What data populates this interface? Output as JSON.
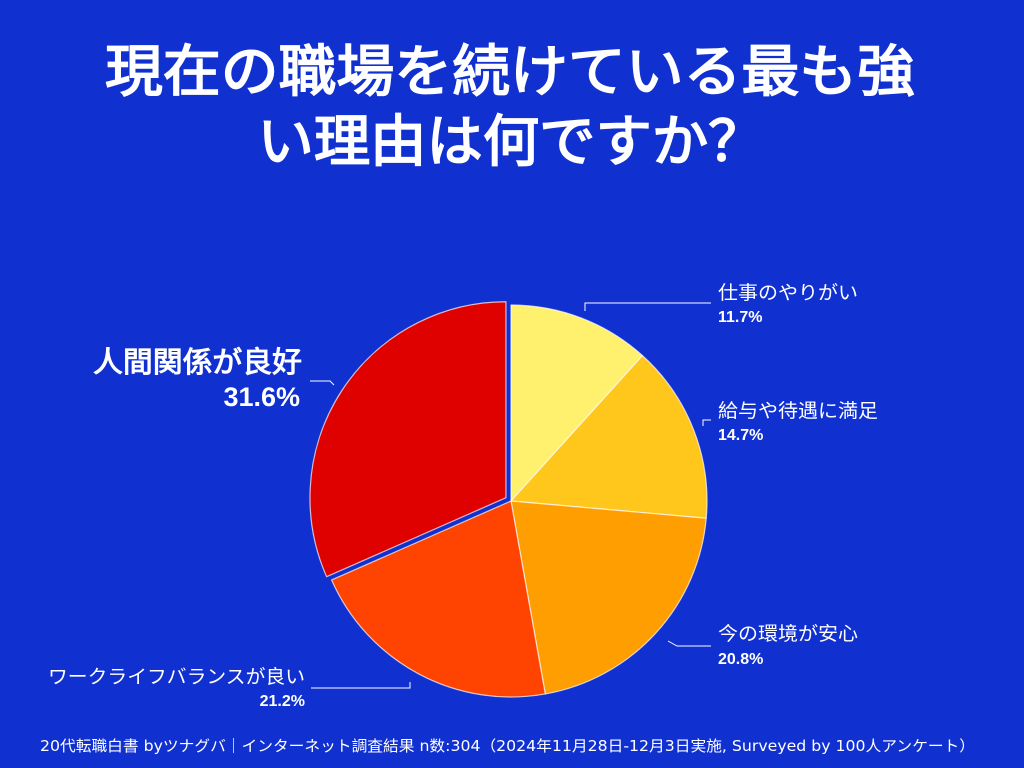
{
  "colors": {
    "background": "#1030D0",
    "text": "#FFFFFF"
  },
  "chart_data": {
    "type": "pie",
    "title": [
      "現在の職場を続けている最も強",
      "い理由は何ですか？"
    ],
    "start": "top",
    "direction": "clockwise",
    "slices": [
      {
        "label": "仕事のやりがい",
        "value": 11.7,
        "value_label": "11.7%",
        "color": "#FFF06E"
      },
      {
        "label": "給与や待遇に満足",
        "value": 14.7,
        "value_label": "14.7%",
        "color": "#FFC61C"
      },
      {
        "label": "今の環境が安心",
        "value": 20.8,
        "value_label": "20.8%",
        "color": "#FF9E00"
      },
      {
        "label": "ワークライフバランスが良い",
        "value": 21.2,
        "value_label": "21.2%",
        "color": "#FF4300"
      },
      {
        "label": "人間関係が良好",
        "value": 31.6,
        "value_label": "31.6%",
        "color": "#DF0000",
        "exploded": true
      }
    ]
  },
  "source_note": "20代転職白書 byツナグバ｜インターネット調査結果 n数:304（2024年11月28日-12月3日実施, Surveyed by 100人アンケート）"
}
